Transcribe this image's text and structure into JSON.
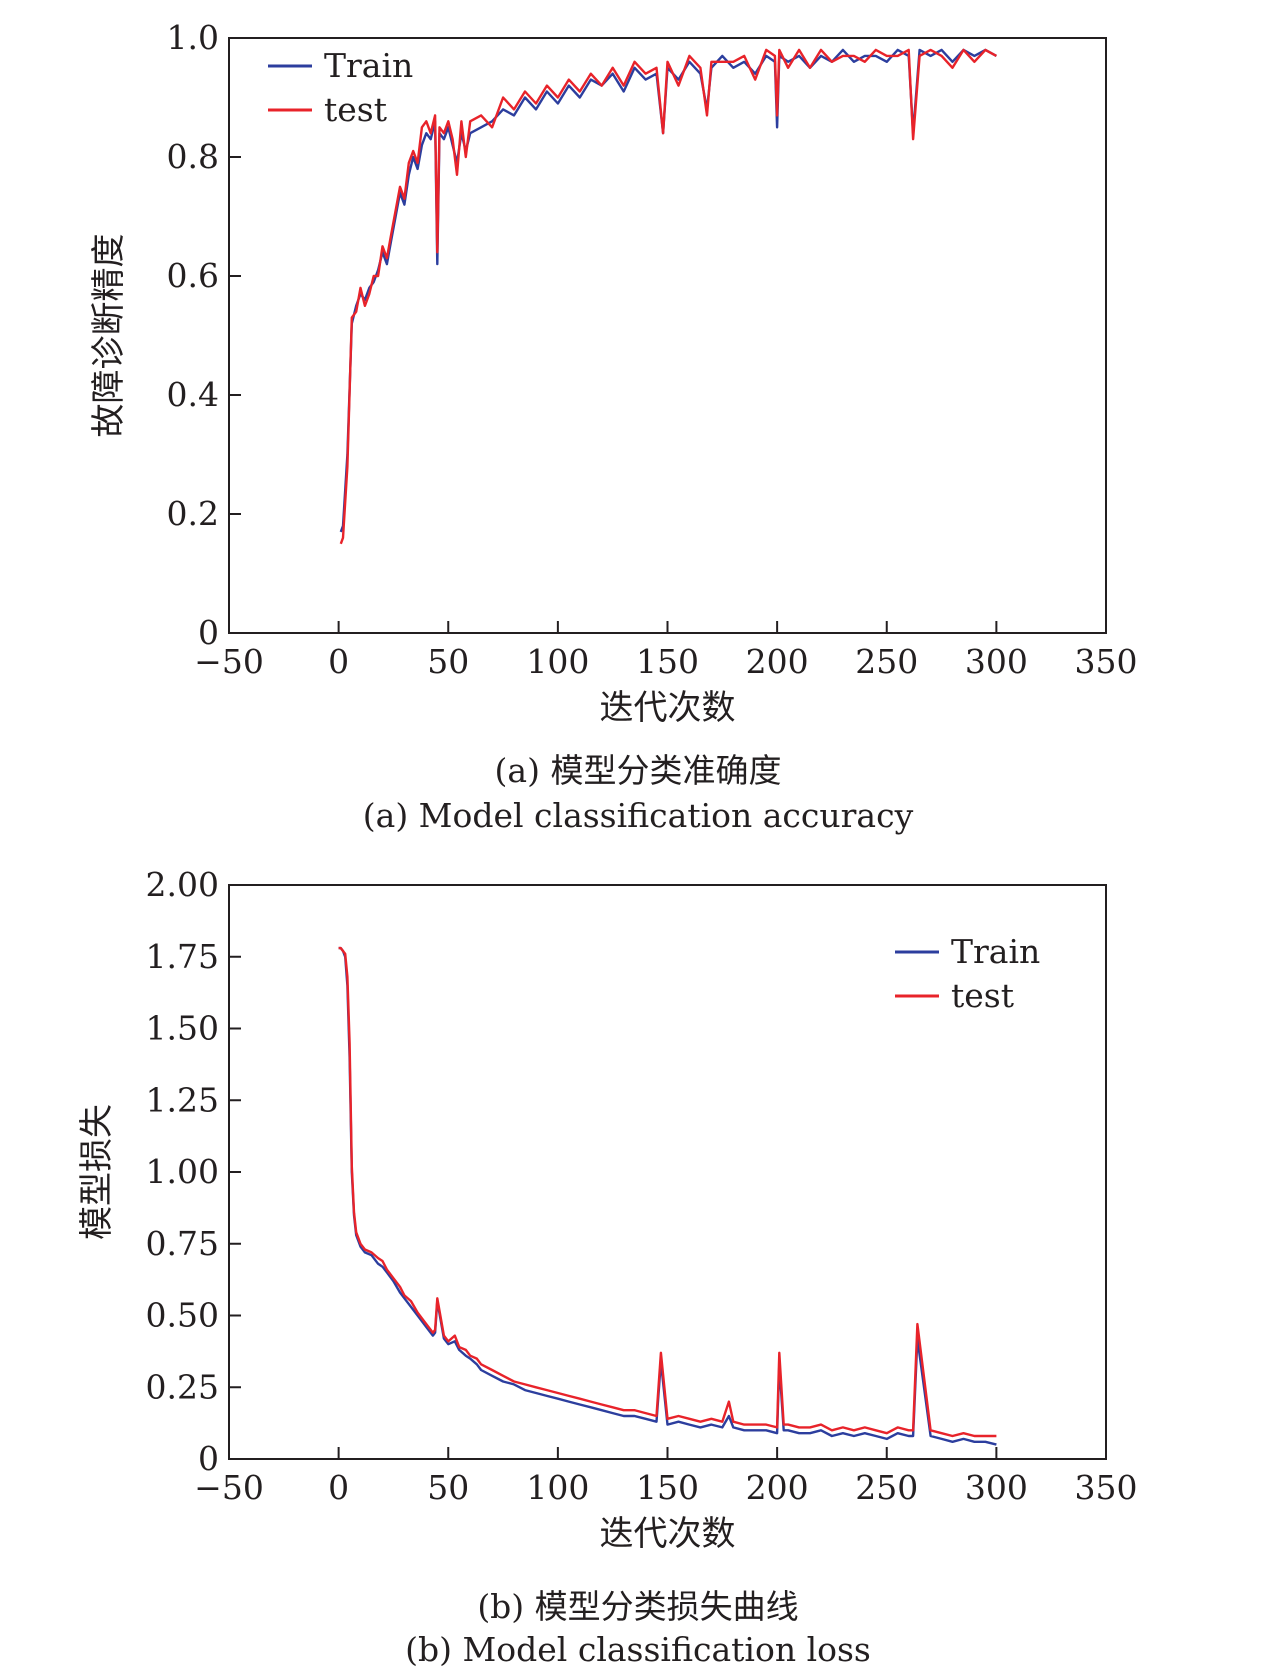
{
  "figure": {
    "panel_a": {
      "caption_zh": "(a) 模型分类准确度",
      "caption_en": "(a) Model classification accuracy"
    },
    "panel_b": {
      "caption_zh": "(b) 模型分类损失曲线",
      "caption_en": "(b) Model classification loss"
    }
  },
  "chart_data": [
    {
      "type": "line",
      "title": "",
      "xlabel": "迭代次数",
      "ylabel": "故障诊断精度",
      "xlim": [
        -50,
        350
      ],
      "ylim": [
        0,
        1.0
      ],
      "xticks": [
        "−50",
        "0",
        "50",
        "100",
        "150",
        "200",
        "250",
        "300",
        "350"
      ],
      "yticks": [
        "0",
        "0.2",
        "0.4",
        "0.6",
        "0.8",
        "1.0"
      ],
      "legend_position": "top-left",
      "colors": {
        "Train": "#2c3e9e",
        "test": "#e8232a"
      },
      "series": [
        {
          "name": "Train",
          "x": [
            1,
            2,
            4,
            6,
            8,
            10,
            12,
            14,
            16,
            18,
            20,
            22,
            24,
            26,
            28,
            30,
            32,
            34,
            36,
            38,
            40,
            42,
            44,
            45,
            46,
            48,
            50,
            52,
            54,
            56,
            58,
            60,
            65,
            70,
            75,
            80,
            85,
            90,
            95,
            100,
            105,
            110,
            115,
            120,
            125,
            130,
            135,
            140,
            145,
            148,
            150,
            155,
            160,
            165,
            168,
            170,
            175,
            180,
            185,
            190,
            195,
            199,
            200,
            201,
            205,
            210,
            215,
            220,
            225,
            230,
            235,
            240,
            245,
            250,
            255,
            260,
            262,
            265,
            270,
            275,
            280,
            285,
            290,
            295,
            300
          ],
          "values": [
            0.17,
            0.18,
            0.3,
            0.52,
            0.55,
            0.57,
            0.56,
            0.58,
            0.59,
            0.61,
            0.64,
            0.62,
            0.66,
            0.7,
            0.74,
            0.72,
            0.77,
            0.8,
            0.78,
            0.82,
            0.84,
            0.83,
            0.86,
            0.62,
            0.84,
            0.83,
            0.85,
            0.82,
            0.79,
            0.84,
            0.81,
            0.84,
            0.85,
            0.86,
            0.88,
            0.87,
            0.9,
            0.88,
            0.91,
            0.89,
            0.92,
            0.9,
            0.93,
            0.92,
            0.94,
            0.91,
            0.95,
            0.93,
            0.94,
            0.84,
            0.95,
            0.93,
            0.96,
            0.94,
            0.88,
            0.95,
            0.97,
            0.95,
            0.96,
            0.94,
            0.97,
            0.96,
            0.85,
            0.97,
            0.96,
            0.97,
            0.95,
            0.97,
            0.96,
            0.98,
            0.96,
            0.97,
            0.97,
            0.96,
            0.98,
            0.97,
            0.84,
            0.98,
            0.97,
            0.98,
            0.96,
            0.98,
            0.97,
            0.98,
            0.97
          ]
        },
        {
          "name": "test",
          "x": [
            1,
            2,
            4,
            6,
            8,
            10,
            12,
            14,
            16,
            18,
            20,
            22,
            24,
            26,
            28,
            30,
            32,
            34,
            36,
            38,
            40,
            42,
            44,
            45,
            46,
            48,
            50,
            52,
            54,
            56,
            58,
            60,
            65,
            70,
            75,
            80,
            85,
            90,
            95,
            100,
            105,
            110,
            115,
            120,
            125,
            130,
            135,
            140,
            145,
            148,
            150,
            155,
            160,
            165,
            168,
            170,
            175,
            180,
            185,
            190,
            195,
            199,
            200,
            201,
            205,
            210,
            215,
            220,
            225,
            230,
            235,
            240,
            245,
            250,
            255,
            260,
            262,
            265,
            270,
            275,
            280,
            285,
            290,
            295,
            300
          ],
          "values": [
            0.15,
            0.16,
            0.28,
            0.53,
            0.54,
            0.58,
            0.55,
            0.57,
            0.6,
            0.6,
            0.65,
            0.63,
            0.67,
            0.71,
            0.75,
            0.73,
            0.79,
            0.81,
            0.79,
            0.85,
            0.86,
            0.84,
            0.87,
            0.64,
            0.85,
            0.84,
            0.86,
            0.83,
            0.77,
            0.86,
            0.8,
            0.86,
            0.87,
            0.85,
            0.9,
            0.88,
            0.91,
            0.89,
            0.92,
            0.9,
            0.93,
            0.91,
            0.94,
            0.92,
            0.95,
            0.92,
            0.96,
            0.94,
            0.95,
            0.84,
            0.96,
            0.92,
            0.97,
            0.95,
            0.87,
            0.96,
            0.96,
            0.96,
            0.97,
            0.93,
            0.98,
            0.97,
            0.87,
            0.98,
            0.95,
            0.98,
            0.95,
            0.98,
            0.96,
            0.97,
            0.97,
            0.96,
            0.98,
            0.97,
            0.97,
            0.98,
            0.83,
            0.97,
            0.98,
            0.97,
            0.95,
            0.98,
            0.96,
            0.98,
            0.97
          ]
        }
      ]
    },
    {
      "type": "line",
      "title": "",
      "xlabel": "迭代次数",
      "ylabel": "模型损失",
      "xlim": [
        -50,
        350
      ],
      "ylim": [
        0,
        2.0
      ],
      "xticks": [
        "−50",
        "0",
        "50",
        "100",
        "150",
        "200",
        "250",
        "300",
        "350"
      ],
      "yticks": [
        "0",
        "0.25",
        "0.50",
        "0.75",
        "1.00",
        "1.25",
        "1.50",
        "1.75",
        "2.00"
      ],
      "legend_position": "top-right",
      "colors": {
        "Train": "#2c3e9e",
        "test": "#e8232a"
      },
      "series": [
        {
          "name": "Train",
          "x": [
            0,
            1,
            2,
            3,
            4,
            5,
            6,
            7,
            8,
            10,
            12,
            15,
            18,
            20,
            22,
            25,
            28,
            30,
            33,
            36,
            40,
            43,
            44,
            45,
            48,
            50,
            53,
            55,
            58,
            60,
            63,
            65,
            70,
            75,
            80,
            85,
            90,
            95,
            100,
            105,
            110,
            115,
            120,
            125,
            130,
            135,
            140,
            145,
            147,
            150,
            155,
            160,
            165,
            170,
            175,
            178,
            180,
            185,
            190,
            195,
            200,
            201,
            203,
            205,
            210,
            215,
            220,
            225,
            230,
            235,
            240,
            245,
            250,
            255,
            260,
            262,
            264,
            270,
            275,
            280,
            285,
            290,
            295,
            300
          ],
          "values": [
            1.78,
            1.78,
            1.77,
            1.75,
            1.65,
            1.4,
            1.0,
            0.85,
            0.78,
            0.74,
            0.72,
            0.71,
            0.68,
            0.67,
            0.65,
            0.62,
            0.58,
            0.56,
            0.53,
            0.5,
            0.46,
            0.43,
            0.44,
            0.55,
            0.42,
            0.4,
            0.41,
            0.38,
            0.36,
            0.35,
            0.33,
            0.31,
            0.29,
            0.27,
            0.26,
            0.24,
            0.23,
            0.22,
            0.21,
            0.2,
            0.19,
            0.18,
            0.17,
            0.16,
            0.15,
            0.15,
            0.14,
            0.13,
            0.34,
            0.12,
            0.13,
            0.12,
            0.11,
            0.12,
            0.11,
            0.15,
            0.11,
            0.1,
            0.1,
            0.1,
            0.09,
            0.33,
            0.1,
            0.1,
            0.09,
            0.09,
            0.1,
            0.08,
            0.09,
            0.08,
            0.09,
            0.08,
            0.07,
            0.09,
            0.08,
            0.08,
            0.42,
            0.08,
            0.07,
            0.06,
            0.07,
            0.06,
            0.06,
            0.05
          ]
        },
        {
          "name": "test",
          "x": [
            0,
            1,
            2,
            3,
            4,
            5,
            6,
            7,
            8,
            10,
            12,
            15,
            18,
            20,
            22,
            25,
            28,
            30,
            33,
            36,
            40,
            43,
            44,
            45,
            48,
            50,
            53,
            55,
            58,
            60,
            63,
            65,
            70,
            75,
            80,
            85,
            90,
            95,
            100,
            105,
            110,
            115,
            120,
            125,
            130,
            135,
            140,
            145,
            147,
            150,
            155,
            160,
            165,
            170,
            175,
            178,
            180,
            185,
            190,
            195,
            200,
            201,
            203,
            205,
            210,
            215,
            220,
            225,
            230,
            235,
            240,
            245,
            250,
            255,
            260,
            262,
            264,
            270,
            275,
            280,
            285,
            290,
            295,
            300
          ],
          "values": [
            1.78,
            1.78,
            1.77,
            1.76,
            1.68,
            1.45,
            1.02,
            0.86,
            0.79,
            0.75,
            0.73,
            0.72,
            0.7,
            0.69,
            0.66,
            0.63,
            0.6,
            0.57,
            0.55,
            0.51,
            0.47,
            0.44,
            0.45,
            0.56,
            0.43,
            0.41,
            0.43,
            0.39,
            0.38,
            0.36,
            0.35,
            0.33,
            0.31,
            0.29,
            0.27,
            0.26,
            0.25,
            0.24,
            0.23,
            0.22,
            0.21,
            0.2,
            0.19,
            0.18,
            0.17,
            0.17,
            0.16,
            0.15,
            0.37,
            0.14,
            0.15,
            0.14,
            0.13,
            0.14,
            0.13,
            0.2,
            0.13,
            0.12,
            0.12,
            0.12,
            0.11,
            0.37,
            0.12,
            0.12,
            0.11,
            0.11,
            0.12,
            0.1,
            0.11,
            0.1,
            0.11,
            0.1,
            0.09,
            0.11,
            0.1,
            0.1,
            0.47,
            0.1,
            0.09,
            0.08,
            0.09,
            0.08,
            0.08,
            0.08
          ]
        }
      ]
    }
  ]
}
